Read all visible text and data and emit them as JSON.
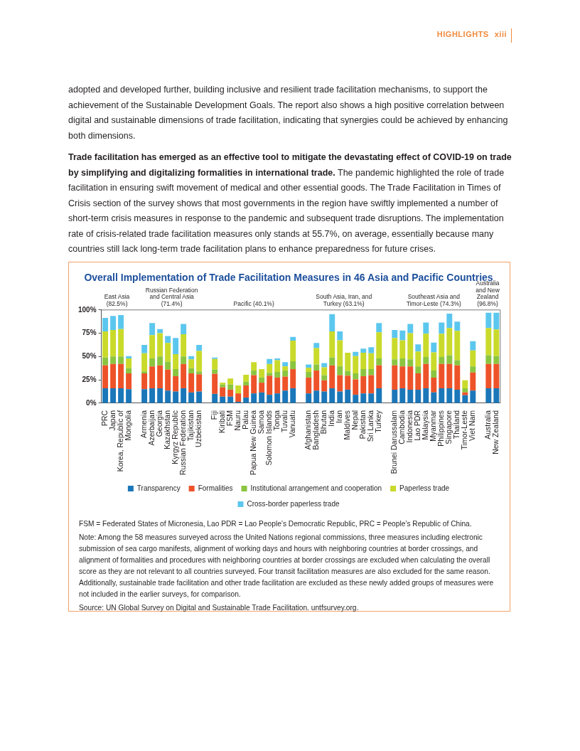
{
  "chart_data": {
    "type": "bar",
    "stacked": true,
    "title": "Overall Implementation of Trade Facilitation Measures in 46 Asia and Pacific Countries",
    "categories": [
      "PRC",
      "Japan",
      "Korea, Republic of",
      "Mongolia",
      null,
      "Armenia",
      "Azerbaijan",
      "Georgia",
      "Kazakhstan",
      "Kyrgyz Republic",
      "Russian Federation",
      "Tajikistan",
      "Uzbekistan",
      null,
      "Fiji",
      "Kiribati",
      "FSM",
      "Nauru",
      "Palau",
      "Papua New Guinea",
      "Samoa",
      "Solomon Islands",
      "Tonga",
      "Tuvalu",
      "Vanuatu",
      null,
      "Afghanistan",
      "Bangladesh",
      "Bhutan",
      "India",
      "Iran",
      "Maldives",
      "Nepal",
      "Pakistan",
      "Sri Lanka",
      "Turkey",
      null,
      "Brunei Darussalam",
      "Cambodia",
      "Indonesia",
      "Lao PDR",
      "Malaysia",
      "Myanmar",
      "Philippines",
      "Singapore",
      "Thailand",
      "Timor-Leste",
      "Viet Nam",
      null,
      "Australia",
      "New Zealand"
    ],
    "series": [
      {
        "name": "Transparency",
        "color": "#1a77b9",
        "values": [
          16,
          16,
          16,
          15,
          null,
          15,
          16,
          16,
          13.5,
          12.5,
          16,
          11.5,
          12.5,
          null,
          10,
          7,
          7,
          1.5,
          6,
          10.5,
          11.5,
          9,
          10.5,
          13.5,
          16,
          null,
          10.5,
          13.5,
          12.5,
          16,
          12.5,
          14.5,
          9,
          10.5,
          10.5,
          16,
          null,
          14.5,
          16,
          14.5,
          14.5,
          16,
          11.5,
          16,
          16,
          14.5,
          8.5,
          13.5,
          null,
          16,
          16
        ]
      },
      {
        "name": "Formalities",
        "color": "#ee5229",
        "values": [
          24.5,
          26,
          26,
          17,
          null,
          17,
          23.5,
          24.5,
          22.5,
          16.5,
          26,
          20.5,
          18.5,
          null,
          21.5,
          10,
          7.5,
          9,
          13,
          19.5,
          10.5,
          20.5,
          17,
          15,
          20.5,
          null,
          17,
          21.5,
          12,
          24.5,
          17.5,
          15,
          16.5,
          18.5,
          19.5,
          24.5,
          null,
          26,
          23.5,
          25,
          17.5,
          26,
          16,
          26,
          26,
          26,
          3,
          19.5,
          null,
          26,
          26
        ]
      },
      {
        "name": "Institutional arrangement and cooperation",
        "color": "#8bc540",
        "values": [
          8.5,
          8,
          8,
          5.5,
          null,
          2,
          8.5,
          9.5,
          8.5,
          7.5,
          8,
          5.5,
          3,
          null,
          4.5,
          3,
          5.5,
          0,
          4,
          5,
          5.5,
          3,
          6,
          6.5,
          8.5,
          null,
          6,
          6.5,
          5.5,
          8.5,
          9.5,
          5,
          6.5,
          7.5,
          6.5,
          7.5,
          null,
          6.5,
          8.5,
          7.5,
          7.5,
          7.5,
          7.5,
          7.5,
          9.5,
          5.5,
          4.5,
          6.5,
          null,
          9.5,
          8.5
        ]
      },
      {
        "name": "Paperless trade",
        "color": "#c9da2b",
        "values": [
          28,
          28.5,
          29.5,
          10.5,
          null,
          19.5,
          25,
          25,
          20,
          16,
          24,
          9.5,
          22,
          null,
          11.5,
          2,
          6.5,
          8.5,
          7.5,
          9,
          9,
          9.5,
          12.5,
          4.5,
          22,
          null,
          4.5,
          17.5,
          8.5,
          28,
          28,
          19.5,
          18.5,
          17.5,
          17,
          28,
          null,
          23,
          19.5,
          28,
          16,
          25,
          19.5,
          25,
          29,
          31.5,
          8.5,
          17,
          null,
          29,
          28.5
        ]
      },
      {
        "name": "Cross-border paperless trade",
        "color": "#5cc7ee",
        "values": [
          14.5,
          15,
          15,
          2.5,
          null,
          9,
          13,
          4.5,
          7.5,
          17.5,
          11,
          3.5,
          6.5,
          null,
          1.5,
          0,
          0,
          0,
          0,
          0,
          0,
          5.5,
          2,
          4.5,
          4,
          null,
          3.5,
          5.5,
          4.5,
          18.5,
          9.5,
          0,
          4.5,
          4.5,
          6.5,
          10,
          null,
          8.5,
          10.5,
          10,
          7.5,
          12,
          10.5,
          12,
          15.5,
          10,
          0,
          10,
          null,
          16.5,
          18
        ]
      }
    ],
    "ylim": [
      0,
      100
    ],
    "yticks": [
      {
        "value": 0,
        "label": "0%"
      },
      {
        "value": 25,
        "label": "25%"
      },
      {
        "value": 50,
        "label": "50%"
      },
      {
        "value": 75,
        "label": "75%"
      },
      {
        "value": 100,
        "label": "100%"
      }
    ],
    "legend": "bottom",
    "annotations": [
      "East Asia (82.5%)",
      "Russian Federation and Central Asia (71.4%)",
      "Pacific (40.1%)",
      "South Asia, Iran, and Turkey (63.1%)",
      "Southeast Asia and Timor-Leste (74.3%)",
      "Australia and New Zealand (96.8%)",
      "HIGHLIGHTS",
      "xiii",
      "adopted and developed further, building inclusive and resilient trade facilitation mechanisms, to support the achievement of the Sustainable Development Goals. The report also shows a high positive correlation between digital and sustainable dimensions of trade facilitation, indicating that synergies could be achieved by enhancing both dimensions.",
      "Trade facilitation has emerged as an effective tool to mitigate the devastating effect of COVID-19 on trade by simplifying and digitalizing formalities in international trade.",
      "The pandemic highlighted the role of trade facilitation in ensuring swift movement of medical and other essential goods. The Trade Facilitation in Times of Crisis section of the survey shows that most governments in the region have swiftly implemented a number of short-term crisis measures in response to the pandemic and subsequent trade disruptions. The implementation rate of crisis-related trade facilitation measures only stands at 55.7%, on average, essentially because many countries still lack long-term trade facilitation plans to enhance preparedness for future crises.",
      "FSM = Federated States of Micronesia, Lao PDR = Lao People’s Democratic Republic, PRC = People’s Republic of China.",
      "Note: Among the 58 measures surveyed across the United Nations regional commissions, three measures including electronic submission of sea cargo manifests, alignment of working days and hours with neighboring countries at border crossings, and alignment of formalities and procedures with neighboring countries at border crossings are excluded when calculating the overall score as they are not relevant to all countries surveyed. Four transit facilitation measures are also excluded for the same reason. Additionally, sustainable trade facilitation and other trade facilitation are excluded as these newly added groups of measures were not included in the earlier surveys, for comparison.",
      "Source: UN Global Survey on Digital and Sustainable Trade Facilitation. untfsurvey.org."
    ]
  }
}
